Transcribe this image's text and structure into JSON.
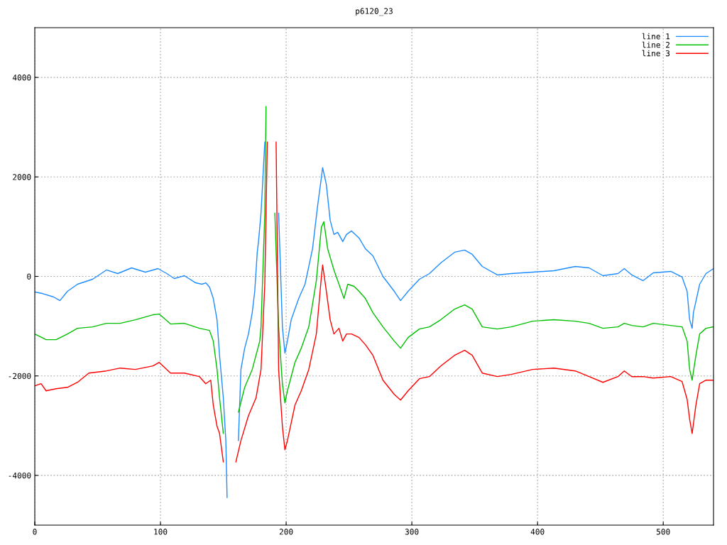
{
  "chart_data": {
    "type": "line",
    "title": "p6120_23",
    "xlim": [
      0,
      540
    ],
    "xticks": [
      0,
      100,
      200,
      300,
      400,
      500
    ],
    "ylim": [
      -5000,
      5000
    ],
    "yticks": [
      -4000,
      -2000,
      0,
      2000,
      4000
    ],
    "grid": true,
    "legend": "top right",
    "line_style": "solid",
    "marker": "none",
    "series": [
      {
        "name": "line 1",
        "color": "#1e8cff",
        "x": [
          0,
          6,
          15,
          20,
          26,
          34,
          46,
          57,
          66,
          77,
          88,
          98,
          105,
          111,
          119,
          128,
          133,
          136,
          139,
          142,
          145,
          147,
          150,
          152,
          153,
          154,
          159,
          162,
          164,
          167,
          170,
          173,
          175,
          177,
          178,
          180,
          183,
          184,
          193,
          194,
          197,
          199,
          201,
          204,
          210,
          215,
          221,
          225,
          228,
          229,
          232,
          235,
          238,
          241,
          245,
          248,
          252,
          258,
          263,
          269,
          277,
          286,
          291,
          297,
          306,
          314,
          323,
          334,
          342,
          348,
          356,
          368,
          379,
          396,
          413,
          430,
          441,
          452,
          464,
          469,
          475,
          484,
          492,
          506,
          515,
          519,
          521,
          523,
          524,
          529,
          534,
          540
        ],
        "values": [
          -314,
          -343,
          -414,
          -486,
          -300,
          -157,
          -57,
          129,
          57,
          171,
          86,
          157,
          57,
          -43,
          14,
          -129,
          -157,
          -129,
          -214,
          -443,
          -871,
          -1586,
          -2443,
          -3300,
          -4443,
          null,
          null,
          -3300,
          -1871,
          -1443,
          -1157,
          -729,
          -300,
          486,
          700,
          1271,
          2700,
          null,
          null,
          1271,
          -1014,
          -1543,
          -1300,
          -871,
          -443,
          -157,
          557,
          1414,
          1986,
          2186,
          1843,
          1129,
          843,
          886,
          700,
          843,
          914,
          771,
          557,
          414,
          0,
          -300,
          -486,
          -300,
          -57,
          57,
          271,
          486,
          529,
          443,
          200,
          29,
          57,
          86,
          114,
          200,
          171,
          14,
          57,
          157,
          29,
          -86,
          71,
          100,
          -14,
          -300,
          -871,
          -1043,
          -729,
          -157,
          57,
          157
        ]
      },
      {
        "name": "line 2",
        "color": "#00c000",
        "x": [
          0,
          9,
          17,
          26,
          34,
          46,
          57,
          68,
          80,
          94,
          99,
          108,
          119,
          131,
          139,
          142,
          145,
          147,
          150,
          152,
          158,
          162,
          167,
          173,
          179,
          180,
          183,
          184,
          186,
          189,
          191,
          194,
          197,
          199,
          201,
          207,
          212,
          218,
          224,
          228,
          230,
          233,
          238,
          242,
          246,
          249,
          254,
          258,
          263,
          269,
          277,
          286,
          291,
          297,
          306,
          314,
          323,
          334,
          342,
          348,
          356,
          368,
          379,
          396,
          413,
          430,
          441,
          452,
          464,
          469,
          475,
          484,
          492,
          515,
          519,
          521,
          523,
          526,
          529,
          534,
          540
        ],
        "values": [
          -1157,
          -1271,
          -1271,
          -1157,
          -1043,
          -1014,
          -943,
          -943,
          -871,
          -771,
          -757,
          -957,
          -943,
          -1043,
          -1086,
          -1300,
          -1871,
          -2443,
          -3157,
          null,
          null,
          -2729,
          -2229,
          -1871,
          -1300,
          -1014,
          1271,
          3414,
          null,
          null,
          1271,
          -1014,
          -2157,
          -2543,
          -2300,
          -1729,
          -1443,
          -1014,
          -86,
          986,
          1100,
          557,
          129,
          -157,
          -443,
          -157,
          -200,
          -300,
          -443,
          -729,
          -1014,
          -1300,
          -1443,
          -1229,
          -1057,
          -1014,
          -871,
          -657,
          -571,
          -657,
          -1014,
          -1057,
          -1014,
          -900,
          -871,
          -900,
          -943,
          -1043,
          -1014,
          -943,
          -986,
          -1014,
          -943,
          -1014,
          -1300,
          -1871,
          -2086,
          -1586,
          -1157,
          -1043,
          -1014
        ]
      },
      {
        "name": "line 3",
        "color": "#ff0000",
        "x": [
          0,
          5,
          9,
          17,
          26,
          34,
          43,
          57,
          68,
          80,
          94,
          99,
          108,
          119,
          131,
          136,
          140,
          142,
          145,
          147,
          150,
          153,
          158,
          160,
          164,
          170,
          176,
          180,
          183,
          185,
          186,
          189,
          192,
          194,
          197,
          199,
          201,
          207,
          212,
          218,
          224,
          228,
          229,
          232,
          235,
          238,
          242,
          245,
          248,
          252,
          258,
          263,
          269,
          277,
          286,
          291,
          297,
          306,
          314,
          323,
          334,
          342,
          348,
          356,
          368,
          379,
          396,
          413,
          430,
          441,
          452,
          464,
          469,
          475,
          484,
          492,
          506,
          515,
          519,
          521,
          523,
          526,
          529,
          534,
          540
        ],
        "values": [
          -2200,
          -2157,
          -2300,
          -2257,
          -2229,
          -2129,
          -1943,
          -1900,
          -1843,
          -1871,
          -1800,
          -1729,
          -1943,
          -1943,
          -2014,
          -2157,
          -2086,
          -2586,
          -3014,
          -3157,
          -3729,
          null,
          null,
          -3729,
          -3300,
          -2800,
          -2443,
          -1871,
          -157,
          2700,
          null,
          null,
          2700,
          -1871,
          -3014,
          -3486,
          -3300,
          -2586,
          -2300,
          -1871,
          -1157,
          -14,
          229,
          -300,
          -871,
          -1157,
          -1043,
          -1300,
          -1157,
          -1157,
          -1229,
          -1371,
          -1586,
          -2086,
          -2371,
          -2486,
          -2300,
          -2057,
          -2014,
          -1800,
          -1586,
          -1486,
          -1586,
          -1943,
          -2014,
          -1971,
          -1871,
          -1843,
          -1900,
          -2014,
          -2129,
          -2014,
          -1900,
          -2014,
          -2014,
          -2043,
          -2014,
          -2114,
          -2471,
          -2871,
          -3157,
          -2586,
          -2157,
          -2086,
          -2086
        ]
      }
    ]
  }
}
